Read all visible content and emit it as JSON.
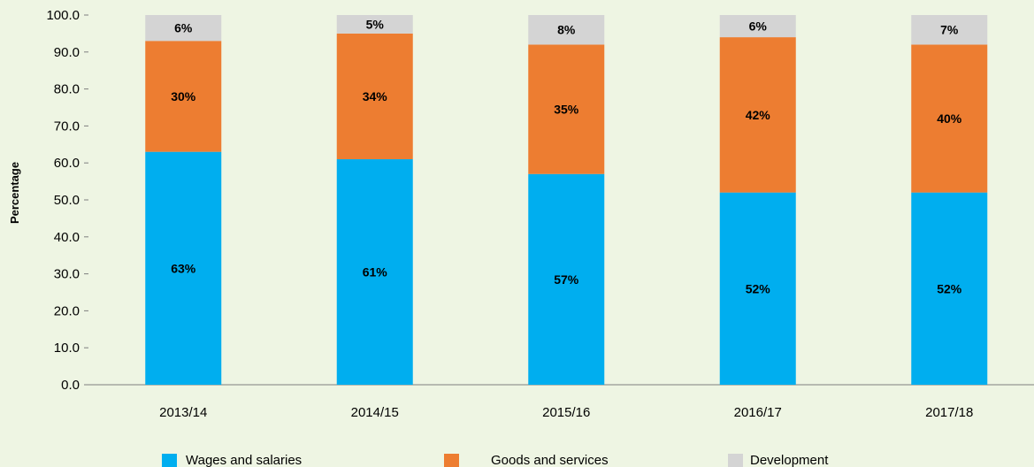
{
  "chart_data": {
    "type": "bar",
    "stacked": true,
    "categories": [
      "2013/14",
      "2014/15",
      "2015/16",
      "2016/17",
      "2017/18"
    ],
    "series": [
      {
        "name": "Wages and salaries",
        "values": [
          63,
          61,
          57,
          52,
          52
        ],
        "labels": [
          "63%",
          "61%",
          "57%",
          "52%",
          "52%"
        ],
        "color": "#00aeef"
      },
      {
        "name": "Goods and services",
        "values": [
          30,
          34,
          35,
          42,
          40
        ],
        "labels": [
          "30%",
          "34%",
          "35%",
          "42%",
          "40%"
        ],
        "color": "#ed7d31"
      },
      {
        "name": "Development",
        "values": [
          6,
          5,
          8,
          6,
          7
        ],
        "labels": [
          "6%",
          "5%",
          "8%",
          "6%",
          "7%"
        ],
        "color": "#d4d4d4"
      }
    ],
    "ylabel": "Percentage",
    "ylim": [
      0,
      100
    ],
    "yticks": [
      "0.0",
      "10.0",
      "20.0",
      "30.0",
      "40.0",
      "50.0",
      "60.0",
      "70.0",
      "80.0",
      "90.0",
      "100.0"
    ],
    "grid": false,
    "legend_position": "bottom",
    "background_color": "#eef5e3"
  }
}
